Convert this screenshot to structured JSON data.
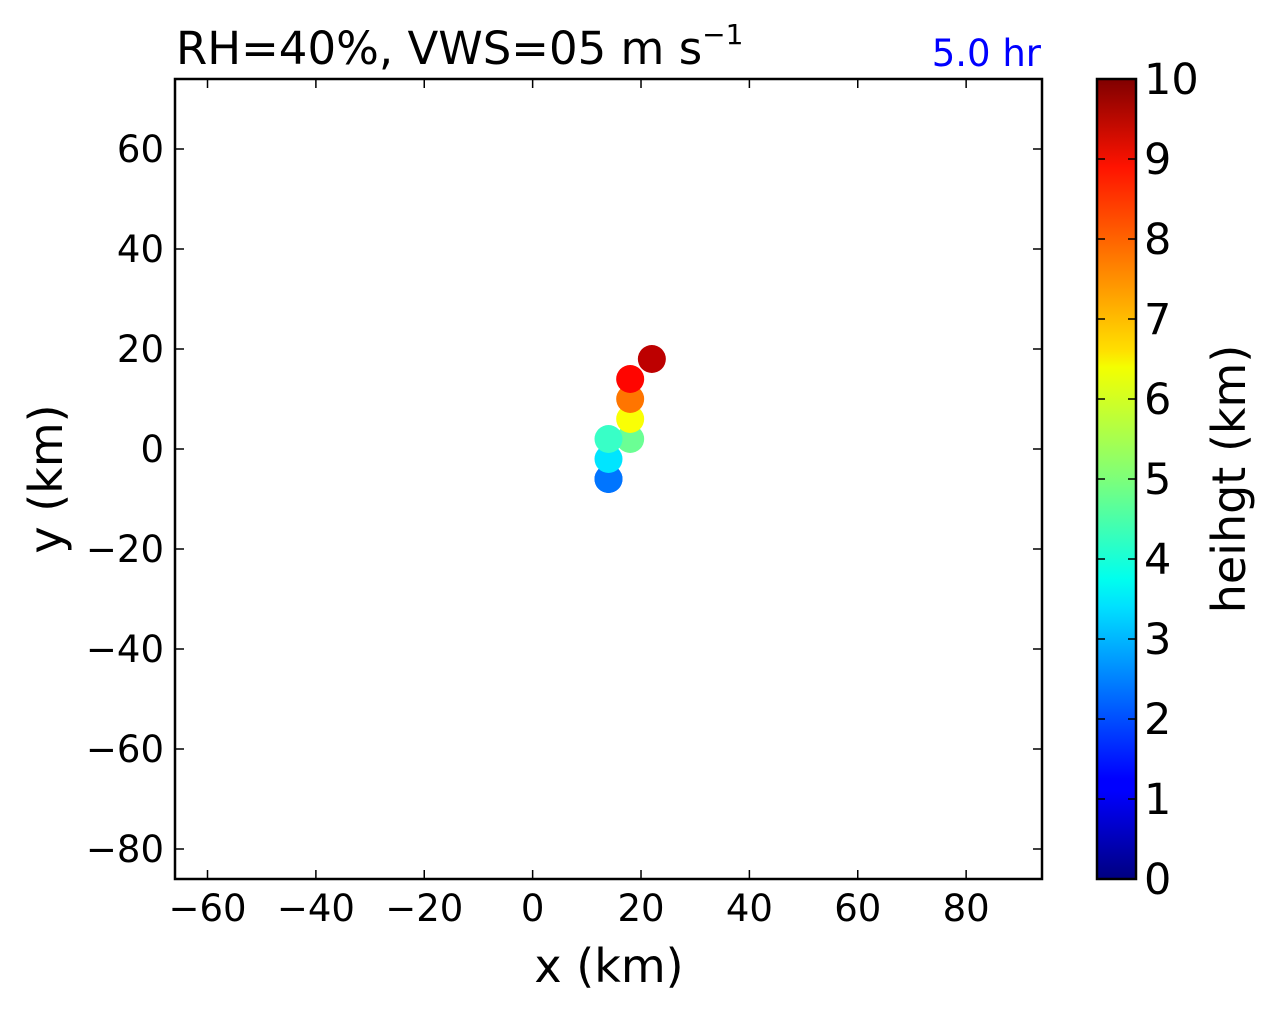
{
  "chart_data": {
    "type": "scatter",
    "title": "RH=40%, VWS=05 m s",
    "title_superscript": "−1",
    "annotation": "5.0 hr",
    "annotation_color": "#0000ff",
    "xlabel": "x (km)",
    "ylabel": "y (km)",
    "xlim": [
      -66,
      94
    ],
    "ylim": [
      -86,
      74
    ],
    "xticks": [
      -60,
      -40,
      -20,
      0,
      20,
      40,
      60,
      80
    ],
    "yticks": [
      -80,
      -60,
      -40,
      -20,
      0,
      20,
      40,
      60
    ],
    "xtick_labels": [
      "−60",
      "−40",
      "−20",
      "0",
      "20",
      "40",
      "60",
      "80"
    ],
    "ytick_labels": [
      "−80",
      "−60",
      "−40",
      "−20",
      "0",
      "20",
      "40",
      "60"
    ],
    "grid": false,
    "colormap": "jet",
    "colorbar": {
      "label": "heihgt (km)",
      "range": [
        0,
        10
      ],
      "ticks": [
        0,
        1,
        2,
        3,
        4,
        5,
        6,
        7,
        8,
        9,
        10
      ],
      "tick_labels": [
        "0",
        "1",
        "2",
        "3",
        "4",
        "5",
        "6",
        "7",
        "8",
        "9",
        "10"
      ]
    },
    "points": [
      {
        "x": 14,
        "y": -6,
        "height": 2.0
      },
      {
        "x": 14,
        "y": -6,
        "height": 2.4
      },
      {
        "x": 14,
        "y": -2,
        "height": 3.5
      },
      {
        "x": 18,
        "y": 2,
        "height": 4.8
      },
      {
        "x": 14,
        "y": 2,
        "height": 4.3
      },
      {
        "x": 18,
        "y": 6,
        "height": 6.2
      },
      {
        "x": 18,
        "y": 10,
        "height": 7.6
      },
      {
        "x": 18,
        "y": 14,
        "height": 8.7
      },
      {
        "x": 22,
        "y": 18,
        "height": 9.4
      }
    ]
  }
}
